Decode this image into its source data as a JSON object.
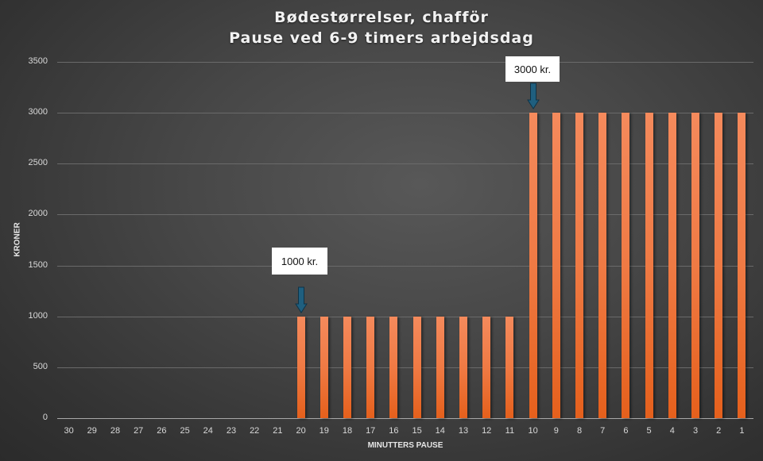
{
  "chart_data": {
    "type": "bar",
    "title": "Bødestørrelser, chafför\nPause ved 6-9 timers arbejdsdag",
    "title_lines": [
      "Bødestørrelser, chafför",
      "Pause ved 6-9 timers arbejdsdag"
    ],
    "xlabel": "MINUTTERS PAUSE",
    "ylabel": "KRONER",
    "ylim": [
      0,
      3500
    ],
    "yticks": [
      0,
      500,
      1000,
      1500,
      2000,
      2500,
      3000,
      3500
    ],
    "grid": true,
    "legend": null,
    "categories": [
      "30",
      "29",
      "28",
      "27",
      "26",
      "25",
      "24",
      "23",
      "22",
      "21",
      "20",
      "19",
      "18",
      "17",
      "16",
      "15",
      "14",
      "13",
      "12",
      "11",
      "10",
      "9",
      "8",
      "7",
      "6",
      "5",
      "4",
      "3",
      "2",
      "1"
    ],
    "values": [
      0,
      0,
      0,
      0,
      0,
      0,
      0,
      0,
      0,
      0,
      1000,
      1000,
      1000,
      1000,
      1000,
      1000,
      1000,
      1000,
      1000,
      1000,
      3000,
      3000,
      3000,
      3000,
      3000,
      3000,
      3000,
      3000,
      3000,
      3000
    ],
    "bar_color": "#ED7D31",
    "annotations": [
      {
        "text": "1000 kr.",
        "category": "20",
        "value": 1000,
        "arrow_color": "#1F5F7F"
      },
      {
        "text": "3000 kr.",
        "category": "10",
        "value": 3000,
        "arrow_color": "#1F5F7F"
      }
    ]
  },
  "title": {
    "line1": "Bødestørrelser, chafför",
    "line2": "Pause ved 6-9 timers arbejdsdag"
  },
  "axes": {
    "x_title": "MINUTTERS PAUSE",
    "y_title": "KRONER",
    "y_ticks": [
      "0",
      "500",
      "1000",
      "1500",
      "2000",
      "2500",
      "3000",
      "3500"
    ],
    "x_ticks": [
      "30",
      "29",
      "28",
      "27",
      "26",
      "25",
      "24",
      "23",
      "22",
      "21",
      "20",
      "19",
      "18",
      "17",
      "16",
      "15",
      "14",
      "13",
      "12",
      "11",
      "10",
      "9",
      "8",
      "7",
      "6",
      "5",
      "4",
      "3",
      "2",
      "1"
    ]
  },
  "callouts": {
    "first": "1000 kr.",
    "second": "3000 kr."
  },
  "colors": {
    "background": "#3f3f3f",
    "bar": "#ED7D31",
    "arrow": "#1F5F7F",
    "text": "#d9d9d9"
  }
}
